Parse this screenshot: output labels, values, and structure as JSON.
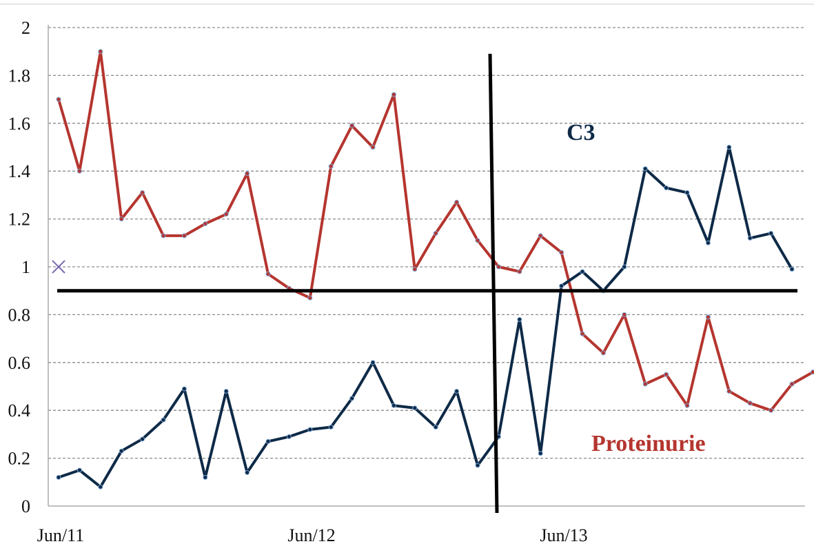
{
  "chart_data": {
    "type": "line",
    "x_tick_labels": [
      "Jun/11",
      "Jun/12",
      "Jun/13"
    ],
    "ylim": [
      0,
      2
    ],
    "y_ticks": [
      "0",
      "0.2",
      "0.4",
      "0.6",
      "0.8",
      "1",
      "1.2",
      "1.4",
      "1.6",
      "1.8",
      "2"
    ],
    "grid": true,
    "series": [
      {
        "name": "Proteinurie",
        "color": "#b5352f",
        "values": [
          1.7,
          1.4,
          1.9,
          1.2,
          1.31,
          1.13,
          1.13,
          1.18,
          1.22,
          1.39,
          0.97,
          0.91,
          0.87,
          1.42,
          1.59,
          1.5,
          1.72,
          0.99,
          1.14,
          1.27,
          1.11,
          1.0,
          0.98,
          1.13,
          1.06,
          0.72,
          0.64,
          0.8,
          0.51,
          0.55,
          0.42,
          0.79,
          0.48,
          0.43,
          0.4,
          0.51,
          0.56
        ]
      },
      {
        "name": "C3",
        "color": "#0e2a47",
        "values": [
          0.12,
          0.15,
          0.08,
          0.23,
          0.28,
          0.36,
          0.49,
          0.12,
          0.48,
          0.14,
          0.27,
          0.29,
          0.32,
          0.33,
          0.45,
          0.6,
          0.42,
          0.41,
          0.33,
          0.48,
          0.17,
          0.29,
          0.78,
          0.22,
          0.92,
          0.98,
          0.9,
          1.0,
          1.41,
          1.33,
          1.31,
          1.1,
          1.5,
          1.12,
          1.14,
          0.99
        ]
      }
    ],
    "reference_line_y": 0.9,
    "marker_y": 1.0
  }
}
